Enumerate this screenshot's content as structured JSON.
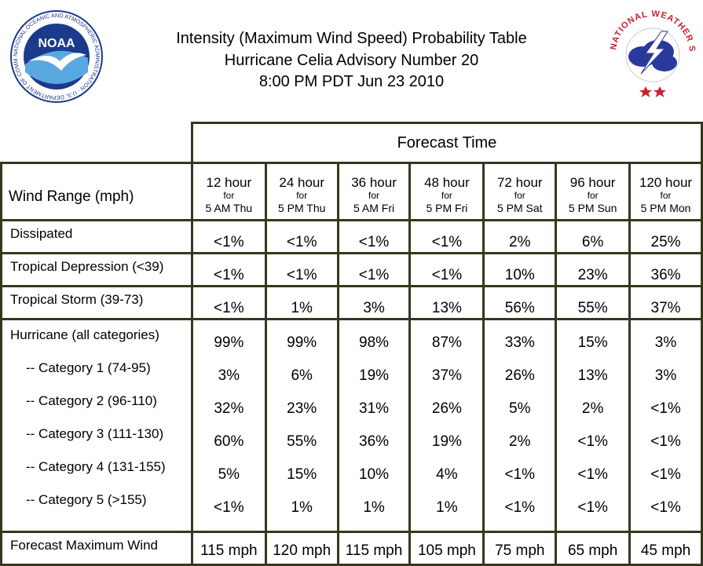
{
  "title": {
    "line1": "Intensity (Maximum Wind Speed) Probability Table",
    "line2": "Hurricane Celia Advisory Number 20",
    "line3": "8:00 PM PDT Jun 23 2010"
  },
  "logos": {
    "left": "NOARA",
    "left_text": "NOAA",
    "left_ring": "NATIONAL OCEANIC AND ATMOSPHERIC ADMINISTRATION · U.S. DEPARTMENT OF COMMERCE",
    "right_ring": "NATIONAL WEATHER SERVICE"
  },
  "table": {
    "forecast_time_label": "Forecast Time",
    "wind_range_label": "Wind Range (mph)",
    "columns": [
      {
        "hour": "12 hour",
        "for": "for",
        "date": "5 AM Thu"
      },
      {
        "hour": "24 hour",
        "for": "for",
        "date": "5 PM Thu"
      },
      {
        "hour": "36 hour",
        "for": "for",
        "date": "5 AM Fri"
      },
      {
        "hour": "48 hour",
        "for": "for",
        "date": "5 PM Fri"
      },
      {
        "hour": "72 hour",
        "for": "for",
        "date": "5 PM Sat"
      },
      {
        "hour": "96 hour",
        "for": "for",
        "date": "5 PM Sun"
      },
      {
        "hour": "120 hour",
        "for": "for",
        "date": "5 PM Mon"
      }
    ],
    "rows": {
      "dissipated": {
        "label": "Dissipated",
        "values": [
          "<1%",
          "<1%",
          "<1%",
          "<1%",
          "2%",
          "6%",
          "25%"
        ]
      },
      "td": {
        "label": "Tropical Depression (<39)",
        "values": [
          "<1%",
          "<1%",
          "<1%",
          "<1%",
          "10%",
          "23%",
          "36%"
        ]
      },
      "ts": {
        "label": "Tropical Storm (39-73)",
        "values": [
          "<1%",
          "1%",
          "3%",
          "13%",
          "56%",
          "55%",
          "37%"
        ]
      }
    },
    "hurricane": {
      "labels": [
        "Hurricane (all categories)",
        "-- Category 1 (74-95)",
        "-- Category 2 (96-110)",
        "-- Category 3 (111-130)",
        "-- Category 4 (131-155)",
        "-- Category 5 (>155)"
      ],
      "columns": [
        [
          "99%",
          "3%",
          "32%",
          "60%",
          "5%",
          "<1%"
        ],
        [
          "99%",
          "6%",
          "23%",
          "55%",
          "15%",
          "1%"
        ],
        [
          "98%",
          "19%",
          "31%",
          "36%",
          "10%",
          "1%"
        ],
        [
          "87%",
          "37%",
          "26%",
          "19%",
          "4%",
          "1%"
        ],
        [
          "33%",
          "26%",
          "5%",
          "2%",
          "<1%",
          "<1%"
        ],
        [
          "15%",
          "13%",
          "2%",
          "<1%",
          "<1%",
          "<1%"
        ],
        [
          "3%",
          "3%",
          "<1%",
          "<1%",
          "<1%",
          "<1%"
        ]
      ]
    },
    "max_wind": {
      "label": "Forecast Maximum Wind",
      "values": [
        "115 mph",
        "120 mph",
        "115 mph",
        "105 mph",
        "75 mph",
        "65 mph",
        "45 mph"
      ]
    }
  },
  "colors": {
    "border": "#37371f",
    "noaa_blue": "#1a3a8c",
    "nws_red": "#cc1f2f"
  }
}
